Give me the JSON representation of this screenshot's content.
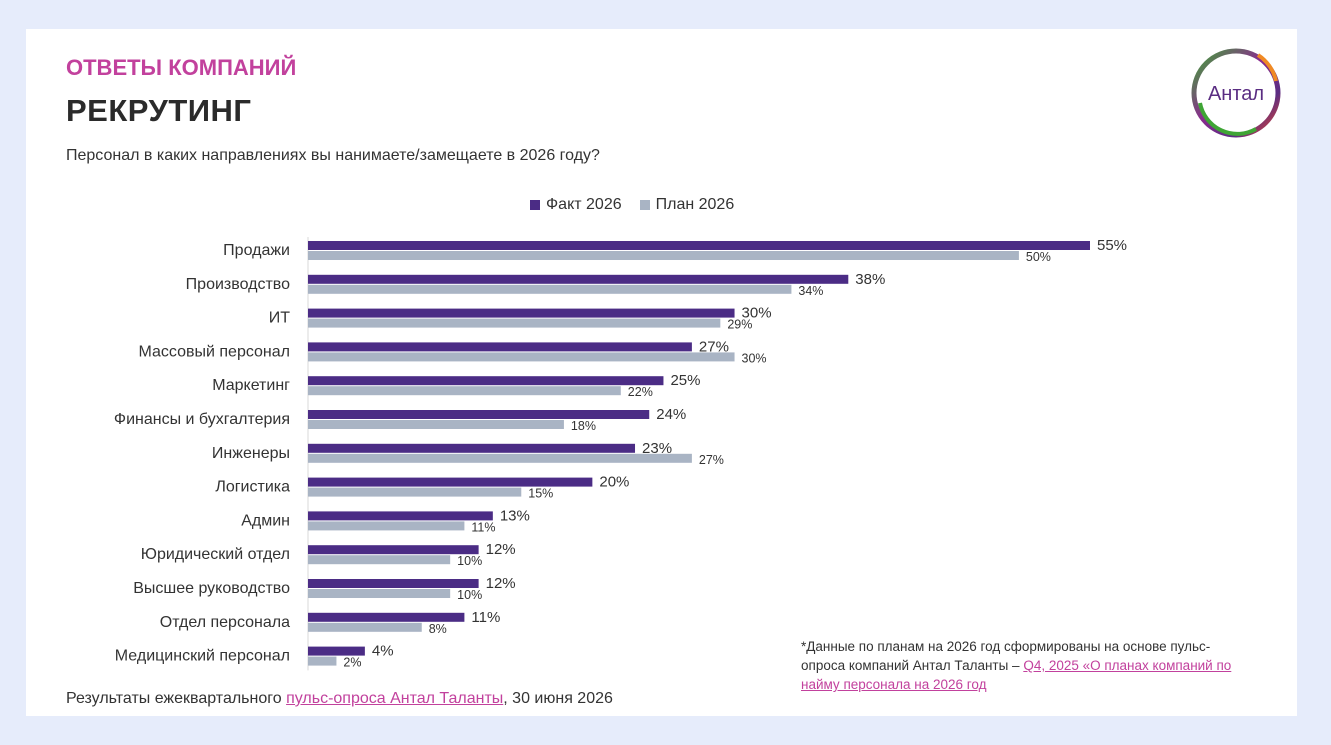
{
  "header": {
    "kicker": "ОТВЕТЫ КОМПАНИЙ",
    "title": "РЕКРУТИНГ",
    "question": "Персонал в каких направлениях вы нанимаете/замещаете в 2026 году?"
  },
  "logo": {
    "text": "Антал"
  },
  "colors": {
    "fact": "#4b2c85",
    "plan": "#a9b4c4",
    "accent": "#c2419d"
  },
  "chart_data": {
    "type": "bar",
    "orientation": "horizontal",
    "categories": [
      "Продажи",
      "Производство",
      "ИТ",
      "Массовый персонал",
      "Маркетинг",
      "Финансы и бухгалтерия",
      "Инженеры",
      "Логистика",
      "Админ",
      "Юридический отдел",
      "Высшее руководство",
      "Отдел персонала",
      "Медицинский персонал"
    ],
    "series": [
      {
        "name": "Факт 2026",
        "values": [
          55,
          38,
          30,
          27,
          25,
          24,
          23,
          20,
          13,
          12,
          12,
          11,
          4
        ]
      },
      {
        "name": "План 2026",
        "values": [
          50,
          34,
          29,
          30,
          22,
          18,
          27,
          15,
          11,
          10,
          10,
          8,
          2
        ]
      }
    ],
    "value_suffix": "%",
    "legend_position": "top",
    "grid": false
  },
  "footnote": {
    "text": "*Данные по планам на 2026 год сформированы на основе пульс-опроса компаний Антал Таланты – ",
    "link": "Q4, 2025 «О планах компаний по найму персонала на 2026 год"
  },
  "source": {
    "prefix": "Результаты ежеквартального ",
    "link": "пульс-опроса Антал Таланты",
    "suffix": ", 30 июня 2026"
  }
}
